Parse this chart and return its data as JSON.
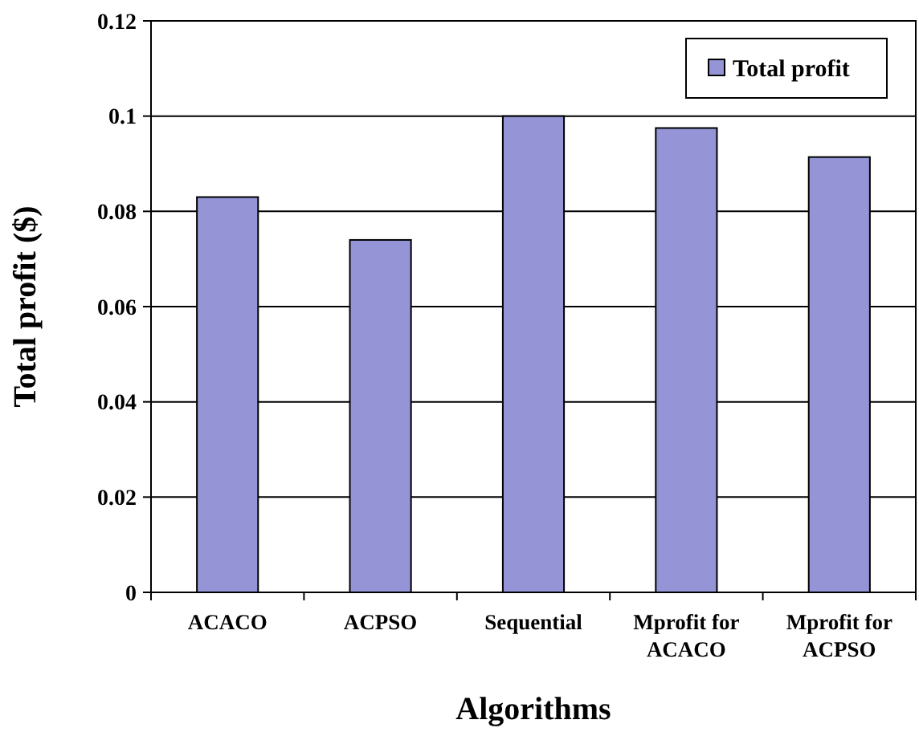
{
  "chart_data": {
    "type": "bar",
    "xlabel": "Algorithms",
    "ylabel": "Total profit ($)",
    "categories": [
      "ACACO",
      "ACPSO",
      "Sequential",
      "Mprofit for ACACO",
      "Mprofit for ACPSO"
    ],
    "series": [
      {
        "name": "Total profit",
        "color": "#9494d6",
        "values": [
          0.083,
          0.074,
          0.1,
          0.0975,
          0.0914
        ]
      }
    ],
    "ylim": [
      0,
      0.12
    ],
    "yticks": [
      0,
      0.02,
      0.04,
      0.06,
      0.08,
      0.1,
      0.12
    ],
    "grid": "y",
    "legend": "top right"
  }
}
